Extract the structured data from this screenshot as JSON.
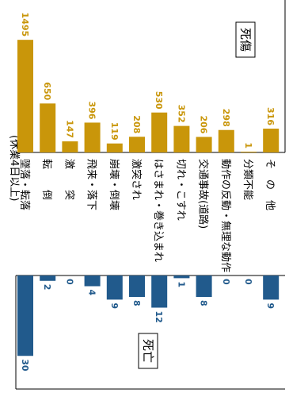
{
  "chart_data": {
    "type": "bar",
    "orientation": "rotated 90° clockwise (categories run top to bottom)",
    "title_fragment": "(休業4日以上)",
    "categories": [
      "墜落・転落",
      "転　　倒",
      "激　　突",
      "飛来・落下",
      "崩壊・倒壊",
      "激突され",
      "はさまれ・巻き込まれ",
      "切れ・こすれ",
      "交通事故(道路)",
      "動作の反動・無理な動作",
      "分類不能",
      "そ　の　他"
    ],
    "series": [
      {
        "name": "死傷",
        "values": [
          1495,
          650,
          147,
          396,
          119,
          208,
          530,
          352,
          206,
          298,
          1,
          316
        ],
        "color": "#C9960A",
        "max": 1560
      },
      {
        "name": "死亡",
        "values": [
          30,
          2,
          0,
          4,
          9,
          8,
          12,
          1,
          8,
          0,
          0,
          9
        ],
        "color": "#215A8C",
        "max": 32
      }
    ]
  }
}
